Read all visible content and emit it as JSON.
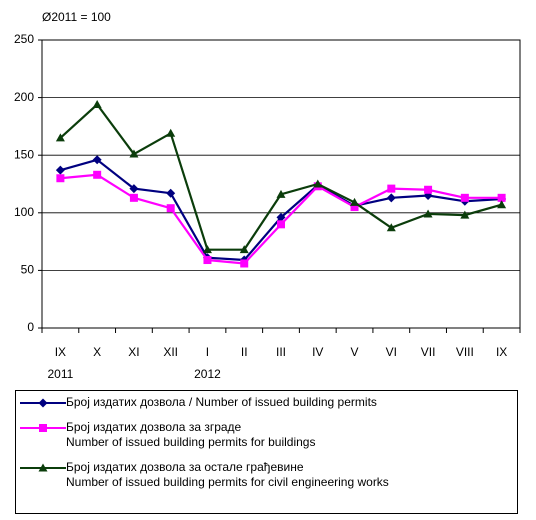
{
  "chart_data": {
    "type": "line",
    "y_label": "Ø2011 = 100",
    "categories": [
      "IX",
      "X",
      "XI",
      "XII",
      "I",
      "II",
      "III",
      "IV",
      "V",
      "VI",
      "VII",
      "VIII",
      "IX"
    ],
    "years": [
      "2011",
      null,
      null,
      null,
      "2012",
      null,
      null,
      null,
      null,
      null,
      null,
      null,
      null
    ],
    "ylim": [
      0,
      250
    ],
    "yticks": [
      0,
      50,
      100,
      150,
      200,
      250
    ],
    "grid": true,
    "series": [
      {
        "name": "Број издатих дозвола / Number  of  issued building permits",
        "color": "#000080",
        "marker": "diamond",
        "values": [
          137,
          146,
          121,
          117,
          61,
          59,
          96,
          124,
          106,
          113,
          115,
          110,
          112
        ]
      },
      {
        "name": "Број издатих дозвола за зграде\nNumber  of  issued building permits for buildings",
        "color": "#ff00ff",
        "marker": "square",
        "values": [
          130,
          133,
          113,
          104,
          59,
          56,
          90,
          123,
          105,
          121,
          120,
          113,
          113
        ]
      },
      {
        "name": "Број издатих дозвола за остале грађевине\nNumber  of  issued building permits for civil engineering works",
        "color": "#0b3d0b",
        "marker": "triangle",
        "values": [
          165,
          194,
          151,
          169,
          68,
          68,
          116,
          125,
          109,
          87,
          99,
          98,
          107
        ]
      }
    ]
  }
}
